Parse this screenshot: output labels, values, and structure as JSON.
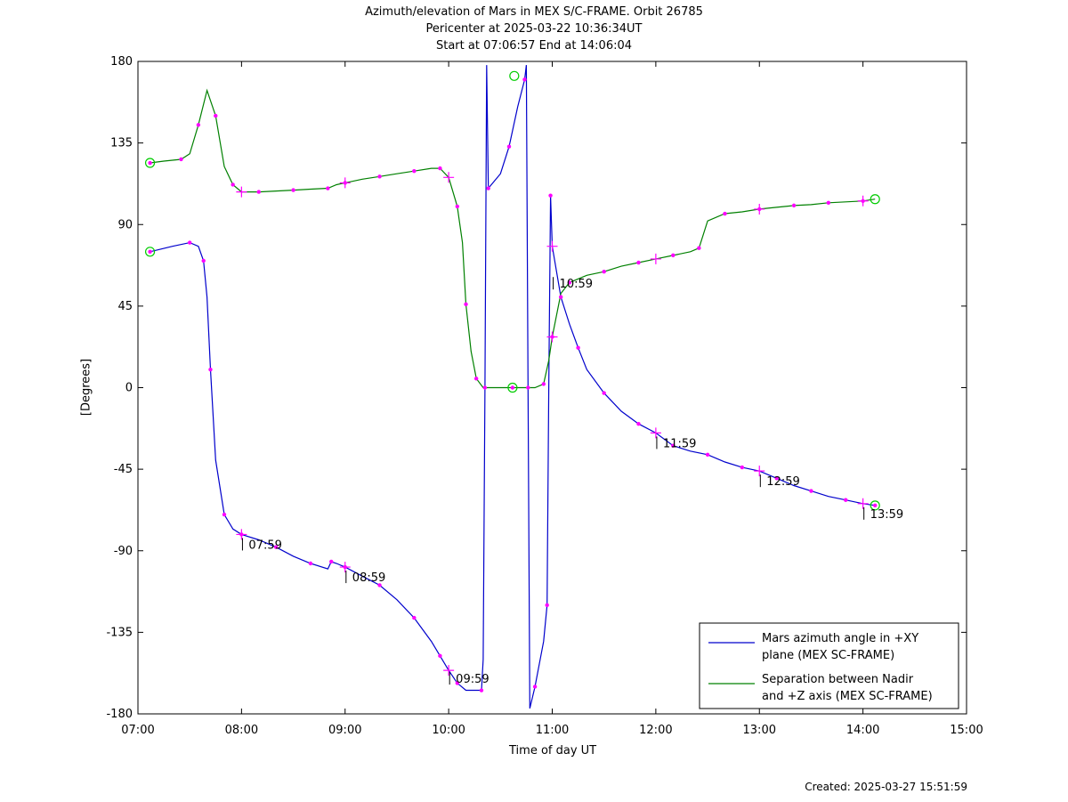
{
  "figure": {
    "title_lines": [
      "Azimuth/elevation of Mars in MEX S/C-FRAME.  Orbit 26785",
      "Pericenter at 2025-03-22 10:36:34UT",
      "Start at 07:06:57 End at 14:06:04"
    ],
    "created": "Created: 2025-03-27 15:51:59"
  },
  "chart_data": {
    "type": "line",
    "title": "Azimuth/elevation of Mars in MEX S/C-FRAME.  Orbit 26785",
    "xlabel": "Time of day UT",
    "ylabel": "[Degrees]",
    "xlim": [
      "07:00",
      "15:00"
    ],
    "ylim": [
      -180,
      180
    ],
    "x_ticks": [
      "07:00",
      "08:00",
      "09:00",
      "10:00",
      "11:00",
      "12:00",
      "13:00",
      "14:00",
      "15:00"
    ],
    "y_ticks": [
      180,
      135,
      90,
      45,
      0,
      -45,
      -90,
      -135,
      -180
    ],
    "legend_position": "bottom-right",
    "grid": false,
    "series": [
      {
        "name": "Mars azimuth angle in +XY plane (MEX SC-FRAME)",
        "legend_lines": [
          "Mars azimuth angle in +XY",
          "plane (MEX SC-FRAME)"
        ],
        "color": "#0000cc",
        "points": [
          [
            "07:07",
            75
          ],
          [
            "07:20",
            78
          ],
          [
            "07:30",
            80
          ],
          [
            "07:35",
            78
          ],
          [
            "07:38",
            70
          ],
          [
            "07:40",
            50
          ],
          [
            "07:42",
            10
          ],
          [
            "07:45",
            -40
          ],
          [
            "07:50",
            -70
          ],
          [
            "07:55",
            -78
          ],
          [
            "08:00",
            -81
          ],
          [
            "08:10",
            -84
          ],
          [
            "08:20",
            -88
          ],
          [
            "08:30",
            -93
          ],
          [
            "08:40",
            -97
          ],
          [
            "08:50",
            -100
          ],
          [
            "08:52",
            -96
          ],
          [
            "08:55",
            -97
          ],
          [
            "09:00",
            -99
          ],
          [
            "09:10",
            -104
          ],
          [
            "09:20",
            -109
          ],
          [
            "09:30",
            -117
          ],
          [
            "09:40",
            -127
          ],
          [
            "09:50",
            -140
          ],
          [
            "09:55",
            -148
          ],
          [
            "10:00",
            -156
          ],
          [
            "10:05",
            -163
          ],
          [
            "10:10",
            -167
          ],
          [
            "10:19",
            -167
          ],
          [
            "10:20",
            -150
          ],
          [
            "10:21",
            0
          ],
          [
            "10:22",
            178
          ],
          [
            "10:23",
            110
          ],
          [
            "10:30",
            118
          ],
          [
            "10:35",
            133
          ],
          [
            "10:40",
            155
          ],
          [
            "10:44",
            170
          ],
          [
            "10:45",
            178
          ],
          [
            "10:46",
            0
          ],
          [
            "10:47",
            -177
          ],
          [
            "10:50",
            -165
          ],
          [
            "10:55",
            -140
          ],
          [
            "10:57",
            -120
          ],
          [
            "10:58",
            0
          ],
          [
            "10:59",
            106
          ],
          [
            "11:00",
            78
          ],
          [
            "11:05",
            50
          ],
          [
            "11:10",
            35
          ],
          [
            "11:15",
            22
          ],
          [
            "11:20",
            10
          ],
          [
            "11:30",
            -3
          ],
          [
            "11:40",
            -13
          ],
          [
            "11:50",
            -20
          ],
          [
            "12:00",
            -25
          ],
          [
            "12:10",
            -32
          ],
          [
            "12:20",
            -35
          ],
          [
            "12:30",
            -37
          ],
          [
            "12:40",
            -41
          ],
          [
            "12:50",
            -44
          ],
          [
            "13:00",
            -46
          ],
          [
            "13:10",
            -50
          ],
          [
            "13:20",
            -54
          ],
          [
            "13:30",
            -57
          ],
          [
            "13:40",
            -60
          ],
          [
            "13:50",
            -62
          ],
          [
            "14:00",
            -64
          ],
          [
            "14:07",
            -65
          ]
        ]
      },
      {
        "name": "Separation between Nadir and +Z axis (MEX SC-FRAME)",
        "legend_lines": [
          "Separation between Nadir",
          "and +Z axis (MEX SC-FRAME)"
        ],
        "color": "#008000",
        "points": [
          [
            "07:07",
            124
          ],
          [
            "07:15",
            125
          ],
          [
            "07:25",
            126
          ],
          [
            "07:30",
            129
          ],
          [
            "07:35",
            145
          ],
          [
            "07:40",
            164
          ],
          [
            "07:45",
            150
          ],
          [
            "07:50",
            122
          ],
          [
            "07:55",
            112
          ],
          [
            "08:00",
            108
          ],
          [
            "08:10",
            108
          ],
          [
            "08:20",
            108.5
          ],
          [
            "08:30",
            109
          ],
          [
            "08:40",
            109.5
          ],
          [
            "08:50",
            110
          ],
          [
            "08:55",
            112
          ],
          [
            "09:00",
            113
          ],
          [
            "09:10",
            115
          ],
          [
            "09:20",
            116.5
          ],
          [
            "09:30",
            118
          ],
          [
            "09:40",
            119.5
          ],
          [
            "09:50",
            121
          ],
          [
            "09:55",
            121
          ],
          [
            "10:00",
            116
          ],
          [
            "10:05",
            100
          ],
          [
            "10:08",
            80
          ],
          [
            "10:10",
            46
          ],
          [
            "10:13",
            20
          ],
          [
            "10:16",
            5
          ],
          [
            "10:20",
            0
          ],
          [
            "10:37",
            0
          ],
          [
            "10:50",
            0
          ],
          [
            "10:55",
            2
          ],
          [
            "10:58",
            15
          ],
          [
            "11:00",
            28
          ],
          [
            "11:05",
            52
          ],
          [
            "11:10",
            58
          ],
          [
            "11:20",
            62
          ],
          [
            "11:30",
            64
          ],
          [
            "11:40",
            67
          ],
          [
            "11:50",
            69
          ],
          [
            "12:00",
            71
          ],
          [
            "12:10",
            73
          ],
          [
            "12:20",
            75
          ],
          [
            "12:25",
            77
          ],
          [
            "12:30",
            92
          ],
          [
            "12:40",
            96
          ],
          [
            "12:50",
            97
          ],
          [
            "13:00",
            98.5
          ],
          [
            "13:10",
            99.5
          ],
          [
            "13:20",
            100.5
          ],
          [
            "13:30",
            101
          ],
          [
            "13:40",
            102
          ],
          [
            "13:50",
            102.5
          ],
          [
            "14:00",
            103
          ],
          [
            "14:07",
            104
          ]
        ]
      }
    ],
    "hour_annotations": [
      {
        "label": "07:59",
        "time": "07:59",
        "value": -81
      },
      {
        "label": "08:59",
        "time": "08:59",
        "value": -99
      },
      {
        "label": "09:59",
        "time": "09:59",
        "value": -155
      },
      {
        "label": "10:59",
        "time": "10:59",
        "value": 63
      },
      {
        "label": "11:59",
        "time": "11:59",
        "value": -25
      },
      {
        "label": "12:59",
        "time": "12:59",
        "value": -46
      },
      {
        "label": "13:59",
        "time": "13:59",
        "value": -64
      }
    ],
    "circle_markers": [
      {
        "time": "07:07",
        "value": 124
      },
      {
        "time": "07:07",
        "value": 75
      },
      {
        "time": "10:37",
        "value": 0
      },
      {
        "time": "10:38",
        "value": 172
      },
      {
        "time": "14:07",
        "value": 104
      },
      {
        "time": "14:07",
        "value": -65
      }
    ]
  }
}
